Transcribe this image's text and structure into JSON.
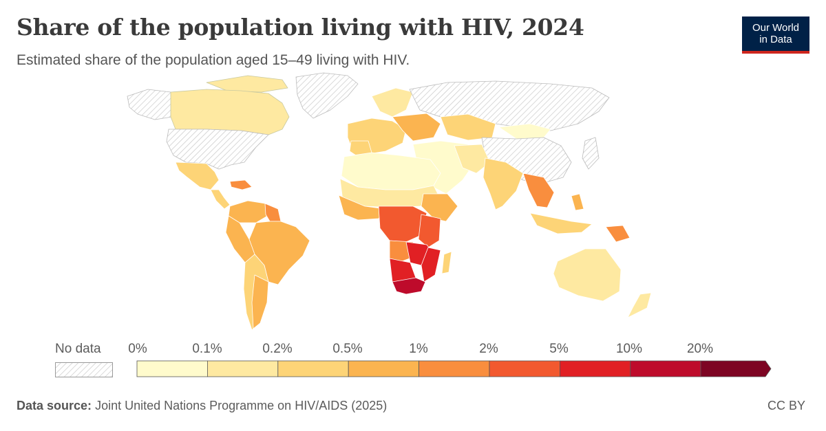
{
  "header": {
    "title": "Share of the population living with HIV, 2024",
    "subtitle": "Estimated share of the population aged 15–49 living with HIV."
  },
  "logo": {
    "line1": "Our World",
    "line2": "in Data"
  },
  "legend": {
    "no_data_label": "No data",
    "ticks": [
      "0%",
      "0.1%",
      "0.2%",
      "0.5%",
      "1%",
      "2%",
      "5%",
      "10%",
      "20%"
    ],
    "colors": [
      "#fffbcc",
      "#fee9a1",
      "#fdd477",
      "#fbb450",
      "#f98e3e",
      "#f2592f",
      "#e12024",
      "#be0b2b",
      "#7d0523"
    ]
  },
  "footer": {
    "source_label": "Data source:",
    "source_text": "Joint United Nations Programme on HIV/AIDS (2025)",
    "license": "CC BY"
  }
}
